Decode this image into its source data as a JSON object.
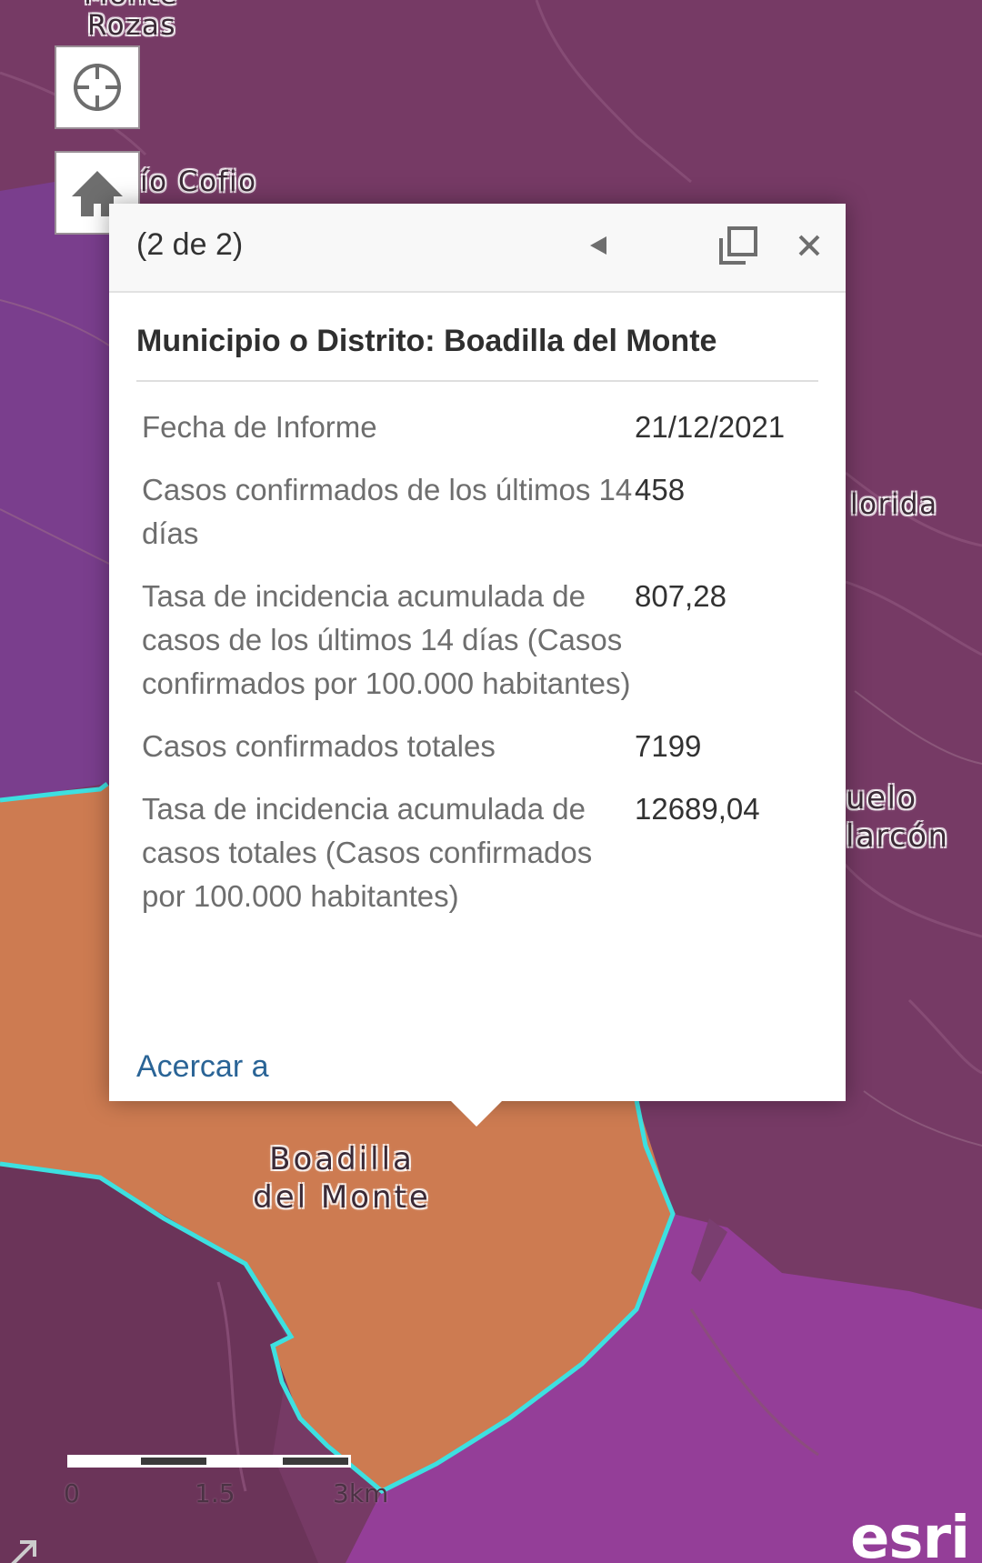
{
  "map": {
    "labels": {
      "monte_top": "Monte",
      "rozas": "Rozas",
      "rio_cofio": "ío Cofio",
      "florida": "lorida",
      "alcorcon_1": "uelo",
      "alcorcon_2": "larcón",
      "boadilla_1": "Boadilla",
      "boadilla_2": "del Monte"
    },
    "colors": {
      "region_dark": "#763a65",
      "region_purple": "#7a3e8d",
      "region_magenta": "#943e98",
      "region_selected": "#cd7b51",
      "highlight_outline": "#3de0e0"
    }
  },
  "controls": {
    "locate_icon": "crosshair-icon",
    "home_icon": "home-icon"
  },
  "popup": {
    "counter": "(2 de 2)",
    "title": "Municipio o Distrito: Boadilla del Monte",
    "fields": [
      {
        "label": "Fecha de Informe",
        "value": "21/12/2021"
      },
      {
        "label": "Casos confirmados de los últimos 14 días",
        "value": "458"
      },
      {
        "label": "Tasa de incidencia acumulada de casos de los últimos 14 días (Casos confirmados por 100.000 habitantes)",
        "value": "807,28"
      },
      {
        "label": "Casos confirmados totales",
        "value": "7199"
      },
      {
        "label": "Tasa de incidencia acumulada de casos totales (Casos confirmados por 100.000 habitantes)",
        "value": "12689,04"
      }
    ],
    "zoom_link": "Acercar a"
  },
  "scalebar": {
    "labels": [
      "0",
      "1.5",
      "3km"
    ]
  },
  "attribution": {
    "logo_text": "esri"
  }
}
